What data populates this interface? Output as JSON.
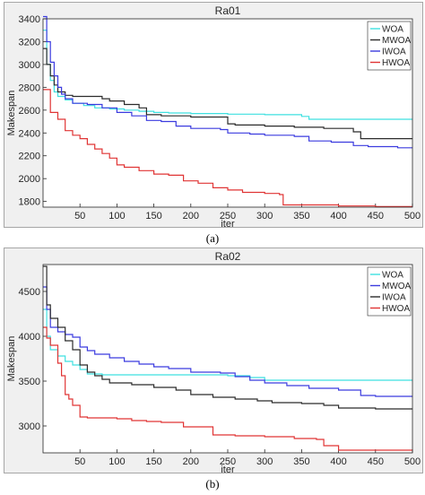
{
  "captions": {
    "a": "(a)",
    "b": "(b)"
  },
  "colors": {
    "WOA": "#3fe0e0",
    "MWOA": "#2b2b2b",
    "IWOA": "#3b3bdf",
    "HWOA": "#e03434"
  },
  "chart_data": [
    {
      "type": "line",
      "title": "Ra01",
      "xlabel": "iter",
      "ylabel": "Makespan",
      "xlim": [
        0,
        500
      ],
      "ylim": [
        1750,
        3400
      ],
      "xticks": [
        50,
        100,
        150,
        200,
        250,
        300,
        350,
        400,
        450,
        500
      ],
      "yticks": [
        1800,
        2000,
        2200,
        2400,
        2600,
        2800,
        3000,
        3200,
        3400
      ],
      "legend": "top-right",
      "series": [
        {
          "name": "WOA",
          "color": "#3fe0e0",
          "x": [
            0,
            5,
            10,
            15,
            20,
            30,
            40,
            55,
            70,
            90,
            110,
            130,
            150,
            170,
            200,
            250,
            300,
            350,
            360,
            400,
            450,
            500
          ],
          "y": [
            3300,
            3000,
            2860,
            2760,
            2720,
            2690,
            2660,
            2640,
            2620,
            2610,
            2600,
            2590,
            2580,
            2575,
            2570,
            2565,
            2560,
            2545,
            2520,
            2520,
            2520,
            2520
          ]
        },
        {
          "name": "MWOA",
          "color": "#2b2b2b",
          "x": [
            0,
            5,
            10,
            15,
            20,
            30,
            40,
            60,
            80,
            90,
            110,
            130,
            140,
            160,
            200,
            250,
            260,
            300,
            340,
            380,
            420,
            430,
            460,
            500
          ],
          "y": [
            3140,
            3000,
            2900,
            2820,
            2760,
            2730,
            2720,
            2720,
            2700,
            2680,
            2650,
            2620,
            2560,
            2550,
            2540,
            2480,
            2470,
            2460,
            2450,
            2440,
            2410,
            2350,
            2350,
            2350
          ]
        },
        {
          "name": "IWOA",
          "color": "#3b3bdf",
          "x": [
            0,
            5,
            10,
            15,
            20,
            25,
            30,
            40,
            60,
            80,
            100,
            120,
            140,
            160,
            180,
            200,
            240,
            250,
            280,
            300,
            340,
            360,
            390,
            420,
            440,
            480,
            500
          ],
          "y": [
            3420,
            3200,
            3020,
            2900,
            2800,
            2740,
            2700,
            2660,
            2650,
            2620,
            2580,
            2550,
            2510,
            2500,
            2460,
            2440,
            2430,
            2400,
            2390,
            2380,
            2370,
            2330,
            2320,
            2290,
            2280,
            2270,
            2270
          ]
        },
        {
          "name": "HWOA",
          "color": "#e03434",
          "x": [
            0,
            10,
            20,
            30,
            40,
            50,
            60,
            70,
            80,
            90,
            100,
            110,
            130,
            150,
            170,
            190,
            210,
            230,
            250,
            270,
            300,
            320,
            325,
            350,
            400,
            450,
            500
          ],
          "y": [
            2780,
            2580,
            2520,
            2420,
            2380,
            2350,
            2300,
            2260,
            2220,
            2180,
            2120,
            2100,
            2070,
            2040,
            2030,
            1980,
            1960,
            1920,
            1900,
            1880,
            1870,
            1860,
            1770,
            1770,
            1760,
            1755,
            1755
          ]
        }
      ]
    },
    {
      "type": "line",
      "title": "Ra02",
      "xlabel": "iter",
      "ylabel": "Makespan",
      "xlim": [
        0,
        500
      ],
      "ylim": [
        2700,
        4800
      ],
      "xticks": [
        50,
        100,
        150,
        200,
        250,
        300,
        350,
        400,
        450,
        500
      ],
      "yticks": [
        3000,
        3500,
        4000,
        4500
      ],
      "legend": "top-right",
      "series": [
        {
          "name": "WOA",
          "color": "#3fe0e0",
          "x": [
            0,
            5,
            10,
            20,
            30,
            40,
            50,
            60,
            80,
            120,
            200,
            250,
            280,
            300,
            350,
            400,
            450,
            500
          ],
          "y": [
            4300,
            4000,
            3850,
            3780,
            3720,
            3680,
            3630,
            3580,
            3570,
            3570,
            3570,
            3560,
            3540,
            3510,
            3510,
            3510,
            3510,
            3510
          ]
        },
        {
          "name": "MWOA",
          "color": "#3b3bdf",
          "x": [
            0,
            5,
            10,
            20,
            30,
            40,
            50,
            60,
            70,
            90,
            110,
            130,
            150,
            170,
            200,
            240,
            260,
            280,
            300,
            330,
            360,
            400,
            430,
            450,
            500
          ],
          "y": [
            4550,
            4300,
            4100,
            4050,
            4020,
            3990,
            3880,
            3840,
            3800,
            3760,
            3720,
            3690,
            3660,
            3640,
            3600,
            3590,
            3550,
            3510,
            3480,
            3450,
            3420,
            3400,
            3340,
            3330,
            3330
          ]
        },
        {
          "name": "IWOA",
          "color": "#2b2b2b",
          "x": [
            0,
            5,
            10,
            20,
            30,
            40,
            50,
            60,
            70,
            80,
            90,
            120,
            150,
            180,
            200,
            230,
            260,
            290,
            310,
            350,
            380,
            400,
            450,
            500
          ],
          "y": [
            4780,
            4350,
            4200,
            4100,
            3950,
            3850,
            3680,
            3600,
            3560,
            3520,
            3480,
            3460,
            3430,
            3400,
            3350,
            3320,
            3300,
            3280,
            3260,
            3250,
            3230,
            3200,
            3190,
            3190
          ]
        },
        {
          "name": "HWOA",
          "color": "#e03434",
          "x": [
            0,
            5,
            10,
            20,
            25,
            30,
            35,
            40,
            50,
            60,
            80,
            100,
            120,
            140,
            160,
            190,
            230,
            260,
            300,
            340,
            370,
            380,
            400,
            450,
            500
          ],
          "y": [
            4100,
            3980,
            3900,
            3700,
            3560,
            3350,
            3300,
            3230,
            3100,
            3090,
            3090,
            3080,
            3060,
            3050,
            3040,
            2990,
            2900,
            2890,
            2880,
            2860,
            2850,
            2780,
            2730,
            2730,
            2730
          ]
        }
      ]
    }
  ]
}
